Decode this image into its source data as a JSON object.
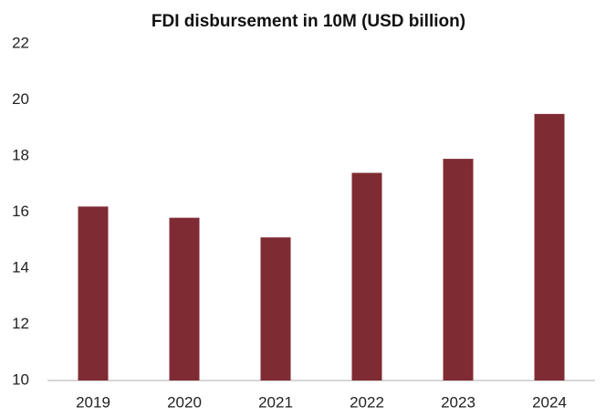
{
  "chart_data": {
    "type": "bar",
    "title": "FDI disbursement in 10M (USD billion)",
    "categories": [
      "2019",
      "2020",
      "2021",
      "2022",
      "2023",
      "2024"
    ],
    "values": [
      16.2,
      15.8,
      15.1,
      17.4,
      17.9,
      19.5
    ],
    "color": "#7f2b33",
    "ylim": [
      10,
      22
    ],
    "yticks": [
      10,
      12,
      14,
      16,
      18,
      20,
      22
    ],
    "grid": false
  }
}
